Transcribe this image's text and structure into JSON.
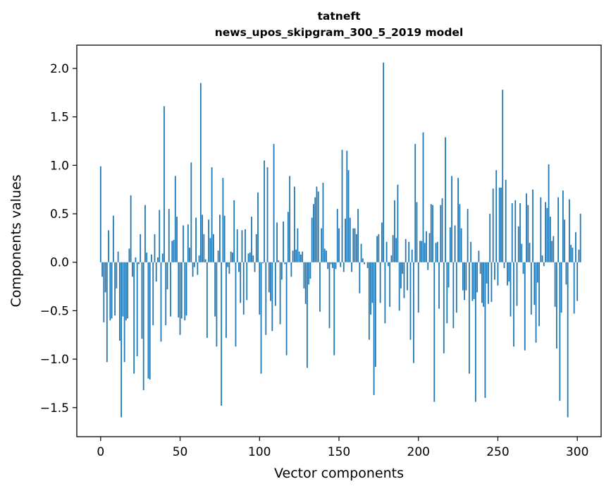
{
  "chart_data": {
    "type": "bar",
    "title": "tatneft",
    "subtitle": "news_upos_skipgram_300_5_2019 model",
    "xlabel": "Vector components",
    "ylabel": "Components values",
    "xlim": [
      -15,
      315
    ],
    "ylim": [
      -1.8,
      2.24
    ],
    "xticks": [
      0,
      50,
      100,
      150,
      200,
      250,
      300
    ],
    "yticks": [
      -1.5,
      -1.0,
      -0.5,
      0.0,
      0.5,
      1.0,
      1.5,
      2.0
    ],
    "ytick_labels": [
      "−1.5",
      "−1.0",
      "−0.5",
      "0.0",
      "0.5",
      "1.0",
      "1.5",
      "2.0"
    ],
    "bar_color": "#1f77b4",
    "grid": false,
    "values": [
      0.99,
      -0.15,
      -0.62,
      -0.31,
      -1.03,
      0.33,
      -0.6,
      -0.58,
      0.48,
      -0.55,
      -0.27,
      0.11,
      -0.81,
      -1.6,
      -0.56,
      -1.03,
      -0.6,
      -0.58,
      0.14,
      0.69,
      -0.15,
      -1.15,
      0.05,
      -0.97,
      -0.02,
      0.29,
      -0.79,
      -1.32,
      0.59,
      0.1,
      -1.2,
      -1.21,
      0.08,
      -0.65,
      0.29,
      -0.2,
      0.05,
      0.54,
      -0.82,
      0.09,
      1.61,
      -0.65,
      -0.28,
      0.55,
      -0.56,
      0.22,
      0.23,
      0.89,
      0.47,
      -0.57,
      -0.75,
      -0.58,
      0.38,
      -0.6,
      -0.55,
      0.39,
      0.15,
      1.03,
      -0.15,
      -0.05,
      0.46,
      -0.13,
      0.07,
      1.85,
      0.49,
      0.29,
      0.03,
      -0.78,
      0.44,
      0.25,
      0.98,
      0.29,
      -0.56,
      -0.87,
      0.12,
      0.49,
      -1.48,
      0.87,
      0.48,
      -0.78,
      -0.05,
      -0.12,
      0.11,
      0.1,
      0.64,
      -0.87,
      0.34,
      -0.1,
      -0.42,
      0.33,
      -0.54,
      0.34,
      -0.39,
      0.09,
      0.1,
      0.47,
      0.07,
      -0.1,
      0.29,
      0.72,
      -0.54,
      -1.15,
      -0.01,
      1.05,
      -0.75,
      0.98,
      -0.31,
      -0.4,
      -0.71,
      1.22,
      -0.45,
      0.41,
      0.02,
      -0.64,
      -0.18,
      0.42,
      -0.02,
      -0.96,
      0.52,
      0.89,
      -0.15,
      0.12,
      0.78,
      0.13,
      0.35,
      0.11,
      0.08,
      0.11,
      -0.27,
      -0.43,
      -1.09,
      -0.23,
      -0.17,
      0.46,
      0.6,
      0.67,
      0.78,
      0.73,
      -0.51,
      0.35,
      0.82,
      0.14,
      0.12,
      -0.07,
      -0.68,
      -0.02,
      -0.06,
      -0.96,
      -0.07,
      0.55,
      0.35,
      -0.05,
      1.16,
      -0.1,
      0.45,
      1.15,
      0.95,
      0.46,
      -0.1,
      0.35,
      0.35,
      0.29,
      0.55,
      -0.32,
      0.19,
      0.04,
      -0.02,
      0.0,
      -0.06,
      -0.8,
      -0.54,
      -0.42,
      -1.37,
      -1.08,
      0.27,
      0.29,
      -0.42,
      0.41,
      2.06,
      -0.63,
      0.21,
      -0.04,
      -0.46,
      0.07,
      0.28,
      0.64,
      0.25,
      0.8,
      -0.5,
      -0.27,
      -0.12,
      -0.37,
      0.24,
      -0.29,
      0.21,
      -0.8,
      0.13,
      -1.04,
      1.22,
      0.62,
      -0.52,
      0.22,
      0.22,
      1.34,
      0.2,
      0.32,
      -0.08,
      0.3,
      0.6,
      0.59,
      -1.44,
      0.2,
      0.21,
      -0.48,
      0.59,
      0.66,
      -0.94,
      1.29,
      -0.63,
      -0.26,
      0.36,
      0.89,
      -0.68,
      0.38,
      -0.52,
      0.87,
      0.6,
      0.35,
      -0.29,
      -0.39,
      -0.29,
      0.55,
      -1.15,
      0.21,
      -0.4,
      -0.38,
      -1.44,
      -0.31,
      0.12,
      -0.12,
      -0.42,
      -0.46,
      -1.4,
      -0.22,
      -0.43,
      0.5,
      -0.41,
      0.76,
      -0.18,
      0.95,
      -0.24,
      0.77,
      0.77,
      1.78,
      -0.06,
      0.85,
      -0.24,
      -0.2,
      -0.56,
      0.61,
      -0.87,
      0.64,
      -0.45,
      0.37,
      0.61,
      0.19,
      -0.12,
      -0.91,
      0.71,
      0.59,
      0.2,
      -0.54,
      0.75,
      -0.44,
      -0.83,
      -0.21,
      -0.66,
      0.67,
      0.07,
      -0.04,
      0.62,
      0.56,
      1.01,
      0.47,
      0.22,
      0.27,
      -0.46,
      -0.89,
      0.67,
      -1.43,
      -0.52,
      0.74,
      0.44,
      -0.23,
      -1.6,
      0.65,
      0.18,
      0.15,
      -0.53,
      0.31,
      -0.4,
      0.13,
      0.5
    ]
  }
}
